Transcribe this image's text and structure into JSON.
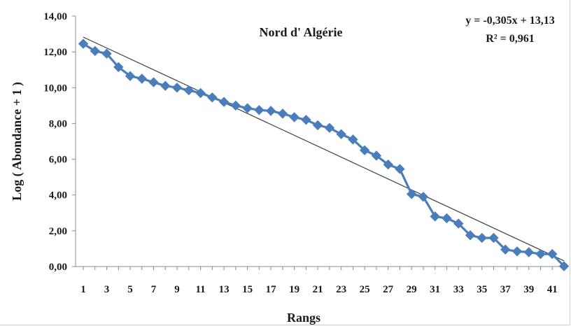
{
  "chart_data": {
    "type": "line",
    "title": "Nord d' Algérie",
    "xlabel": "Rangs",
    "ylabel": "Log ( Abondance + 1 )",
    "ylim": [
      0,
      14
    ],
    "xlim": [
      1,
      42
    ],
    "yticks": [
      "0,00",
      "2,00",
      "4,00",
      "6,00",
      "8,00",
      "10,00",
      "12,00",
      "14,00"
    ],
    "xticks": [
      "1",
      "3",
      "5",
      "7",
      "9",
      "11",
      "13",
      "15",
      "17",
      "19",
      "21",
      "23",
      "25",
      "27",
      "29",
      "31",
      "33",
      "35",
      "37",
      "39",
      "41"
    ],
    "grid": false,
    "colors": {
      "series": "#4a7ebb",
      "trend": "#404040",
      "axis": "#8c8c8c"
    },
    "series": [
      {
        "x": [
          1,
          2,
          3,
          4,
          5,
          6,
          7,
          8,
          9,
          10,
          11,
          12,
          13,
          14,
          15,
          16,
          17,
          18,
          19,
          20,
          21,
          22,
          23,
          24,
          25,
          26,
          27,
          28,
          29,
          30,
          31,
          32,
          33,
          34,
          35,
          36,
          37,
          38,
          39,
          40,
          41,
          42
        ],
        "values": [
          12.45,
          12.05,
          11.9,
          11.15,
          10.65,
          10.5,
          10.3,
          10.1,
          10.0,
          9.85,
          9.7,
          9.45,
          9.2,
          9.0,
          8.85,
          8.75,
          8.7,
          8.55,
          8.35,
          8.2,
          7.9,
          7.75,
          7.4,
          7.1,
          6.5,
          6.2,
          5.7,
          5.45,
          4.05,
          3.9,
          2.8,
          2.7,
          2.4,
          1.75,
          1.6,
          1.6,
          0.95,
          0.85,
          0.8,
          0.7,
          0.7,
          0.02
        ]
      }
    ],
    "trendline": {
      "slope": -0.305,
      "intercept": 13.13,
      "equation": "y = -0,305x + 13,13",
      "r_squared": "R² = 0,961"
    }
  }
}
